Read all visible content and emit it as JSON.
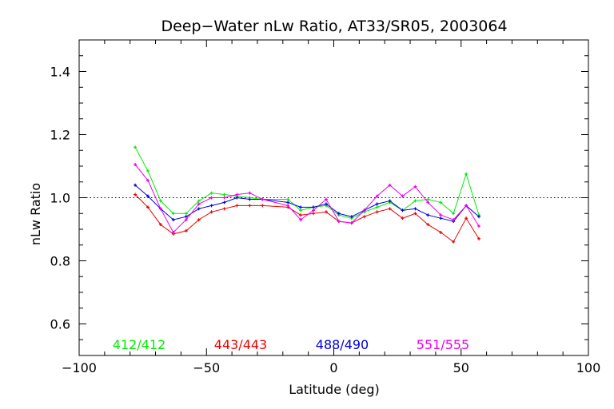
{
  "chart_data": {
    "type": "line",
    "title": "Deep−Water nLw Ratio, AT33/SR05, 2003064",
    "xlabel": "Latitude (deg)",
    "ylabel": "nLw Ratio",
    "xlim": [
      -100,
      100
    ],
    "ylim": [
      0.5,
      1.5
    ],
    "x_ticks": [
      -100,
      -50,
      0,
      50,
      100
    ],
    "x_tick_labels": [
      "−100",
      "−50",
      "0",
      "50",
      "100"
    ],
    "y_ticks": [
      0.6,
      0.8,
      1.0,
      1.2,
      1.4
    ],
    "y_tick_labels": [
      "0.6",
      "0.8",
      "1.0",
      "1.2",
      "1.4"
    ],
    "reference_line": 1.0,
    "legend_placement": "bottom-inside",
    "x": [
      -78,
      -73,
      -68,
      -63,
      -58,
      -53,
      -48,
      -43,
      -38,
      -33,
      -28,
      -18,
      -13,
      -8,
      -3,
      2,
      7,
      12,
      17,
      22,
      27,
      32,
      37,
      42,
      47,
      52,
      57
    ],
    "series": [
      {
        "name": "412/412",
        "color": "#00ee00",
        "values": [
          1.16,
          1.085,
          0.99,
          0.95,
          0.95,
          0.99,
          1.015,
          1.01,
          1.005,
          1.0,
          0.995,
          0.995,
          0.96,
          0.97,
          0.975,
          0.945,
          0.935,
          0.955,
          0.97,
          0.985,
          0.96,
          0.99,
          0.995,
          0.985,
          0.95,
          1.075,
          0.945
        ]
      },
      {
        "name": "443/443",
        "color": "#ee0000",
        "values": [
          1.01,
          0.97,
          0.915,
          0.885,
          0.895,
          0.93,
          0.955,
          0.965,
          0.975,
          0.975,
          0.975,
          0.97,
          0.945,
          0.95,
          0.955,
          0.925,
          0.92,
          0.94,
          0.955,
          0.965,
          0.935,
          0.95,
          0.915,
          0.89,
          0.86,
          0.935,
          0.87
        ]
      },
      {
        "name": "488/490",
        "color": "#0000dd",
        "values": [
          1.04,
          1.005,
          0.965,
          0.93,
          0.94,
          0.965,
          0.975,
          0.985,
          1.0,
          0.995,
          0.995,
          0.985,
          0.97,
          0.97,
          0.98,
          0.95,
          0.94,
          0.96,
          0.98,
          0.99,
          0.96,
          0.965,
          0.945,
          0.935,
          0.925,
          0.975,
          0.94
        ]
      },
      {
        "name": "551/555",
        "color": "#ee00ee",
        "values": [
          1.105,
          1.055,
          0.965,
          0.89,
          0.93,
          0.98,
          1.0,
          1.0,
          1.01,
          1.015,
          0.995,
          0.975,
          0.93,
          0.96,
          0.995,
          0.925,
          0.92,
          0.96,
          1.005,
          1.04,
          1.005,
          1.035,
          0.985,
          0.945,
          0.93,
          0.975,
          0.91
        ]
      }
    ]
  }
}
